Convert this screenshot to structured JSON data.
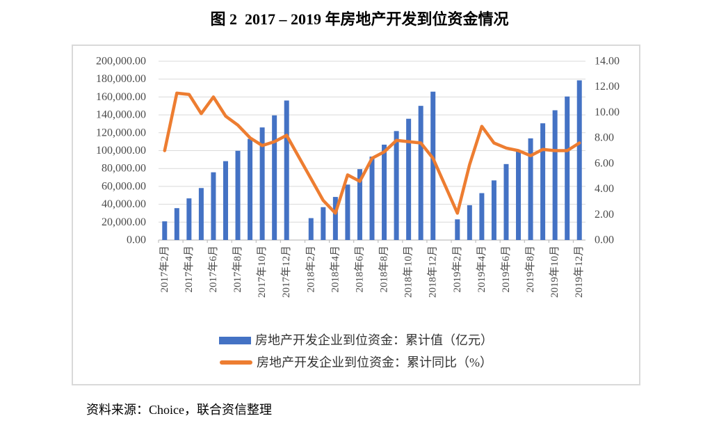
{
  "page": {
    "title": "图 2  2017 – 2019 年房地产开发到位资金情况",
    "source_note": "资料来源：Choice，联合资信整理"
  },
  "colors": {
    "bar": "#4472C4",
    "line": "#ED7D31",
    "gridline": "#D9D9D9",
    "axis_line": "#BFBFBF",
    "tick_label": "#4A4A4A",
    "chart_border": "#D9D9D9"
  },
  "chart_data": {
    "type": "combo",
    "title": "图 2  2017 – 2019 年房地产开发到位资金情况",
    "grid": true,
    "legend_position": "bottom",
    "x_tick_label_interval": 2,
    "categories": [
      "2017年2月",
      "2017年3月",
      "2017年4月",
      "2017年5月",
      "2017年6月",
      "2017年7月",
      "2017年8月",
      "2017年9月",
      "2017年10月",
      "2017年11月",
      "2017年12月",
      "",
      "2018年2月",
      "2018年3月",
      "2018年4月",
      "2018年5月",
      "2018年6月",
      "2018年7月",
      "2018年8月",
      "2018年9月",
      "2018年10月",
      "2018年11月",
      "2018年12月",
      "",
      "2019年2月",
      "2019年3月",
      "2019年4月",
      "2019年5月",
      "2019年6月",
      "2019年7月",
      "2019年8月",
      "2019年9月",
      "2019年10月",
      "2019年11月",
      "2019年12月"
    ],
    "visible_x_labels": [
      "2017年2月",
      "2017年4月",
      "2017年6月",
      "2017年8月",
      "2017年10月",
      "2017年12月",
      "2018年2月",
      "2018年4月",
      "2018年6月",
      "2018年8月",
      "2018年10月",
      "2018年12月",
      "2019年2月",
      "2019年4月",
      "2019年6月",
      "2019年8月",
      "2019年10月",
      "2019年12月"
    ],
    "series": [
      {
        "name": "房地产开发企业到位资金：累计值（亿元）",
        "type": "bar",
        "axis": "left",
        "color": "#4472C4",
        "values": [
          20898,
          35666,
          46594,
          58158,
          75765,
          88217,
          99804,
          113095,
          125941,
          139439,
          156053,
          null,
          24497,
          36770,
          48192,
          62003,
          79287,
          93351,
          106682,
          121882,
          135636,
          150077,
          165963,
          null,
          23138,
          38948,
          52466,
          66689,
          84966,
          99800,
          113724,
          130571,
          145151,
          160531,
          178609
        ]
      },
      {
        "name": "房地产开发企业到位资金：累计同比（%）",
        "type": "line",
        "axis": "right",
        "color": "#ED7D31",
        "values": [
          7.0,
          11.5,
          11.4,
          9.9,
          11.2,
          9.7,
          9.0,
          8.0,
          7.4,
          7.7,
          8.2,
          null,
          4.8,
          3.1,
          2.1,
          5.1,
          4.6,
          6.4,
          6.9,
          7.8,
          7.7,
          7.6,
          6.4,
          null,
          2.1,
          5.9,
          8.9,
          7.6,
          7.2,
          7.0,
          6.6,
          7.1,
          7.0,
          7.0,
          7.6
        ]
      }
    ],
    "left_axis": {
      "min": 0,
      "max": 200000,
      "step": 20000,
      "tick_labels": [
        "0.00",
        "20,000.00",
        "40,000.00",
        "60,000.00",
        "80,000.00",
        "100,000.00",
        "120,000.00",
        "140,000.00",
        "160,000.00",
        "180,000.00",
        "200,000.00"
      ]
    },
    "right_axis": {
      "min": 0,
      "max": 14,
      "step": 2,
      "tick_labels": [
        "0.00",
        "2.00",
        "4.00",
        "6.00",
        "8.00",
        "10.00",
        "12.00",
        "14.00"
      ]
    }
  }
}
